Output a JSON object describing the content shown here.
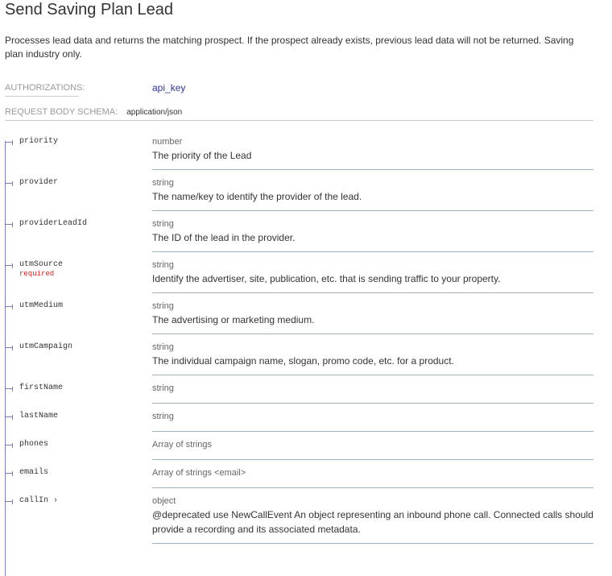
{
  "title": "Send Saving Plan Lead",
  "description": "Processes lead data and returns the matching prospect. If the prospect already exists, previous lead data will not be returned. Saving plan industry only.",
  "authorizations": {
    "label": "AUTHORIZATIONS:",
    "value": "api_key"
  },
  "schema": {
    "label": "REQUEST BODY SCHEMA:",
    "value": "application/json"
  },
  "properties": [
    {
      "name": "priority",
      "type": "number",
      "description": "The priority of the Lead"
    },
    {
      "name": "provider",
      "type": "string",
      "description": "The name/key to identify the provider of the lead."
    },
    {
      "name": "providerLeadId",
      "type": "string",
      "description": "The ID of the lead in the provider."
    },
    {
      "name": "utmSource",
      "required": "required",
      "type": "string",
      "description": "Identify the advertiser, site, publication, etc. that is sending traffic to your property."
    },
    {
      "name": "utmMedium",
      "type": "string",
      "description": "The advertising or marketing medium."
    },
    {
      "name": "utmCampaign",
      "type": "string",
      "description": "The individual campaign name, slogan, promo code, etc. for a product."
    },
    {
      "name": "firstName",
      "type": "string"
    },
    {
      "name": "lastName",
      "type": "string"
    },
    {
      "name": "phones",
      "type": "Array of strings"
    },
    {
      "name": "emails",
      "type": "Array of strings <email>"
    },
    {
      "name": "callIn ›",
      "type": "object",
      "description": "@deprecated use NewCallEvent An object representing an inbound phone call. Connected calls should provide a recording and its associated metadata."
    }
  ]
}
